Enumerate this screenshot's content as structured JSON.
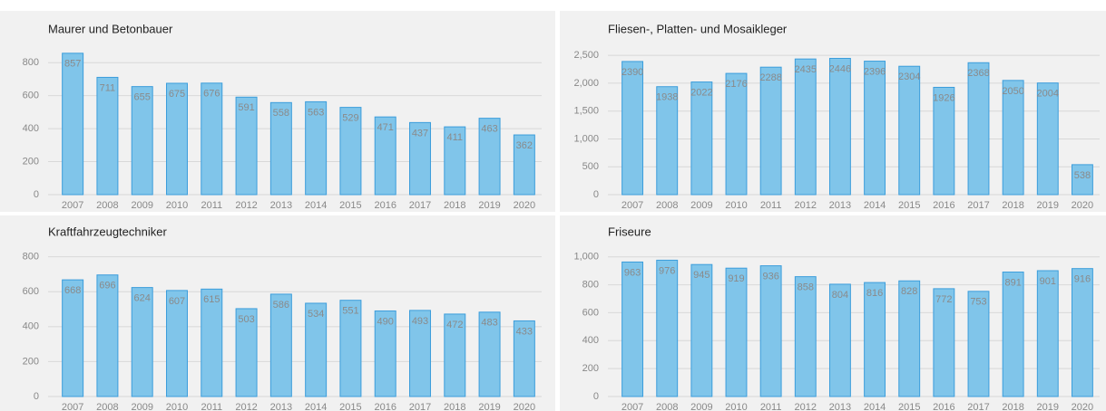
{
  "chart_data": [
    {
      "type": "bar",
      "title": "Maurer und Betonbauer",
      "categories": [
        "2007",
        "2008",
        "2009",
        "2010",
        "2011",
        "2012",
        "2013",
        "2014",
        "2015",
        "2016",
        "2017",
        "2018",
        "2019",
        "2020"
      ],
      "values": [
        857,
        711,
        655,
        675,
        676,
        591,
        558,
        563,
        529,
        471,
        437,
        411,
        463,
        362
      ],
      "color": "#80c5ea",
      "ylim": [
        0,
        900
      ],
      "yticks": [
        0,
        200,
        400,
        600,
        800
      ],
      "grid": true
    },
    {
      "type": "bar",
      "title": "Fliesen-, Platten- und Mosaikleger",
      "categories": [
        "2007",
        "2008",
        "2009",
        "2010",
        "2011",
        "2012",
        "2013",
        "2014",
        "2015",
        "2016",
        "2017",
        "2018",
        "2019",
        "2020"
      ],
      "values": [
        2390,
        1938,
        2022,
        2176,
        2288,
        2435,
        2446,
        2396,
        2304,
        1926,
        2368,
        2050,
        2004,
        538
      ],
      "color": "#80c5ea",
      "ylim": [
        0,
        2600
      ],
      "yticks": [
        0,
        500,
        {
          "value": 1000,
          "label": "1,000"
        },
        {
          "value": 1500,
          "label": "1,500"
        },
        {
          "value": 2000,
          "label": "2,000"
        },
        {
          "value": 2500,
          "label": "2,500"
        }
      ],
      "grid": true
    },
    {
      "type": "bar",
      "title": "Kraftfahrzeugtechniker",
      "categories": [
        "2007",
        "2008",
        "2009",
        "2010",
        "2011",
        "2012",
        "2013",
        "2014",
        "2015",
        "2016",
        "2017",
        "2018",
        "2019",
        "2020"
      ],
      "values": [
        668,
        696,
        624,
        607,
        615,
        503,
        586,
        534,
        551,
        490,
        493,
        472,
        483,
        433
      ],
      "color": "#80c5ea",
      "ylim": [
        0,
        850
      ],
      "yticks": [
        0,
        200,
        400,
        600,
        800
      ],
      "grid": true
    },
    {
      "type": "bar",
      "title": "Friseure",
      "categories": [
        "2007",
        "2008",
        "2009",
        "2010",
        "2011",
        "2012",
        "2013",
        "2014",
        "2015",
        "2016",
        "2017",
        "2018",
        "2019",
        "2020"
      ],
      "values": [
        963,
        976,
        945,
        919,
        936,
        858,
        804,
        816,
        828,
        772,
        753,
        891,
        901,
        916
      ],
      "color": "#80c5ea",
      "ylim": [
        0,
        1050
      ],
      "yticks": [
        0,
        200,
        400,
        600,
        800,
        {
          "value": 1000,
          "label": "1,000"
        }
      ],
      "grid": true
    }
  ]
}
